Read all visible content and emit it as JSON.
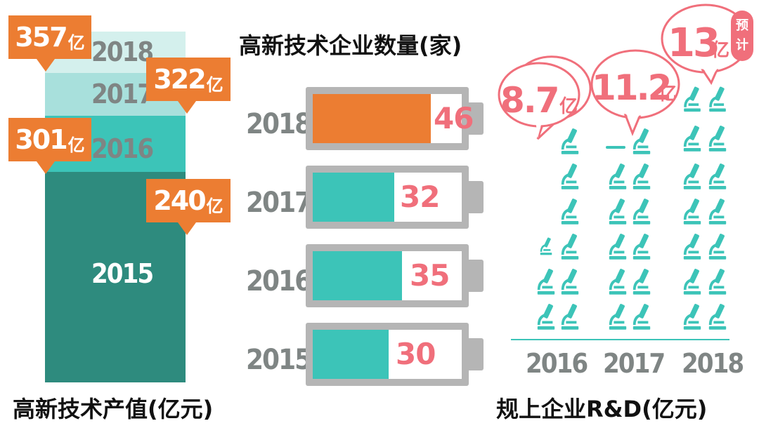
{
  "chart_data": [
    {
      "type": "area",
      "title": "高新技术产值(亿元)",
      "categories": [
        "2015",
        "2016",
        "2017",
        "2018"
      ],
      "values": [
        240,
        301,
        322,
        357
      ],
      "unit": "亿",
      "colors": {
        "2015": "#2e8b7e",
        "2016": "#3cc4b8",
        "2017": "#a8e0dc",
        "2018": "#d4f0ed",
        "callout": "#ec7d32"
      }
    },
    {
      "type": "bar",
      "title": "高新技术企业数量(家)",
      "categories": [
        "2018",
        "2017",
        "2016",
        "2015"
      ],
      "values": [
        46,
        32,
        35,
        30
      ],
      "colors": {
        "highlight": "#ec7d32",
        "normal": "#3cc4b8",
        "label": "#f06f7b"
      }
    },
    {
      "type": "bar",
      "title": "规上企业R&D(亿元)",
      "categories": [
        "2016",
        "2017",
        "2018"
      ],
      "values": [
        8.7,
        11.2,
        13
      ],
      "unit": "亿",
      "note_2018": "预计",
      "icon": "microscope-icon",
      "colors": {
        "icon": "#3cc4b8",
        "bubble": "#f06f7b"
      }
    }
  ]
}
